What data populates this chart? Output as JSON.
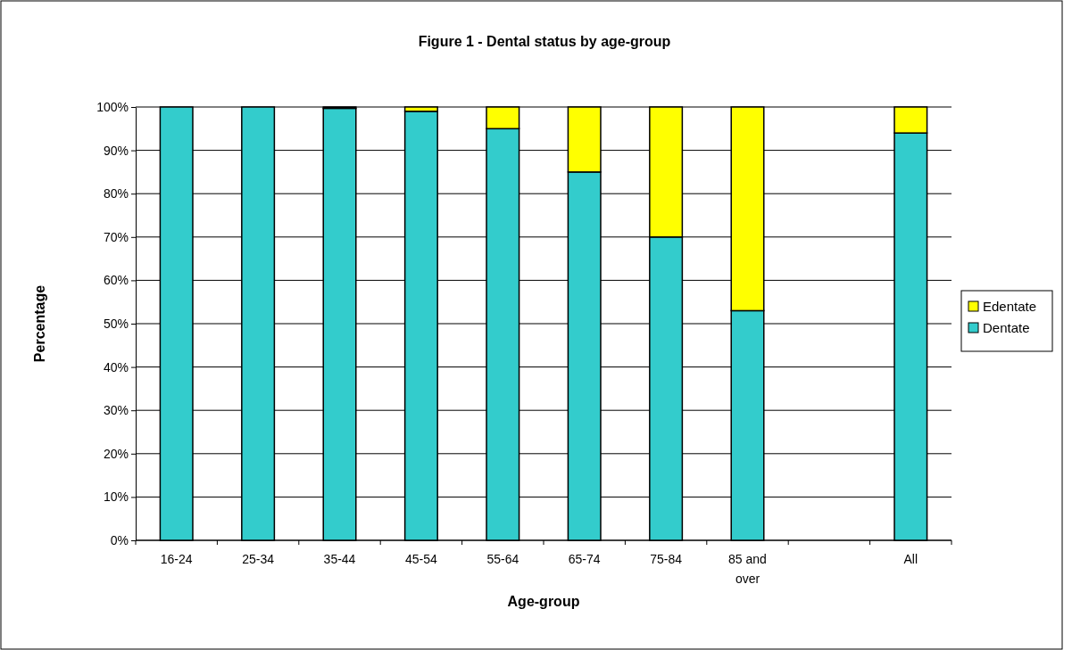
{
  "chart_data": {
    "type": "bar",
    "title": "Figure 1 - Dental status by age-group",
    "xlabel": "Age-group",
    "ylabel": "Percentage",
    "categories": [
      "16-24",
      "25-34",
      "35-44",
      "45-54",
      "55-64",
      "65-74",
      "75-84",
      "85 and over",
      null,
      "All"
    ],
    "series": [
      {
        "name": "Dentate",
        "color": "#33cccc",
        "values": [
          100,
          100,
          99.7,
          99,
          95,
          85,
          70,
          53,
          null,
          94
        ]
      },
      {
        "name": "Edentate",
        "color": "#ffff00",
        "values": [
          0,
          0,
          0.3,
          1,
          5,
          15,
          30,
          47,
          null,
          6
        ]
      }
    ],
    "stacked": true,
    "ylim": [
      0,
      100
    ],
    "yticks": [
      {
        "value": 0,
        "label": "0%"
      },
      {
        "value": 10,
        "label": "10%"
      },
      {
        "value": 20,
        "label": "20%"
      },
      {
        "value": 30,
        "label": "30%"
      },
      {
        "value": 40,
        "label": "40%"
      },
      {
        "value": 50,
        "label": "50%"
      },
      {
        "value": 60,
        "label": "60%"
      },
      {
        "value": 70,
        "label": "70%"
      },
      {
        "value": 80,
        "label": "80%"
      },
      {
        "value": 90,
        "label": "90%"
      },
      {
        "value": 100,
        "label": "100%"
      }
    ],
    "grid": "y",
    "legend": "right"
  }
}
